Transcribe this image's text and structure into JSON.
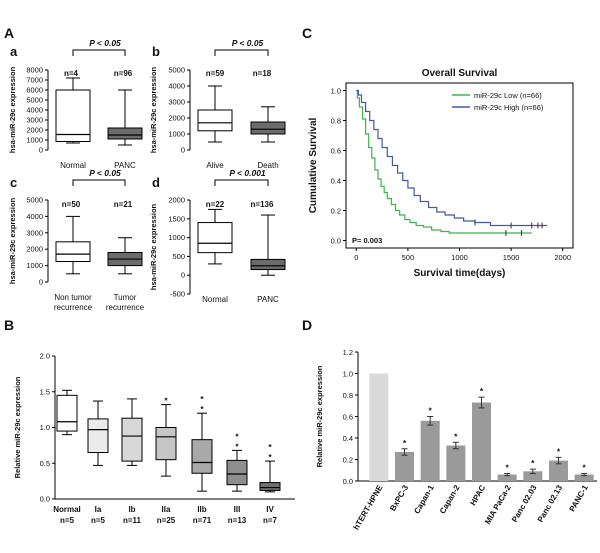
{
  "panel_labels": {
    "A": "A",
    "B": "B",
    "C": "C",
    "D": "D"
  },
  "chart_data": [
    {
      "id": "Aa",
      "label": "a",
      "type": "box",
      "ylabel": "hsa-miR-29c expression",
      "ylim": [
        0,
        8000
      ],
      "yticks": [
        0,
        1000,
        2000,
        3000,
        4000,
        5000,
        6000,
        7000,
        8000
      ],
      "significance": "P < 0.05",
      "groups": [
        {
          "name": "Normal",
          "n_label": "n=4",
          "fill": "#ffffff",
          "whisker_low": 700,
          "q1": 850,
          "median": 1550,
          "q3": 6000,
          "whisker_high": 7200
        },
        {
          "name": "PANC",
          "n_label": "n=96",
          "fill": "#6b6b6b",
          "whisker_low": 500,
          "q1": 1100,
          "median": 1500,
          "q3": 2200,
          "whisker_high": 6000
        }
      ]
    },
    {
      "id": "Ab",
      "label": "b",
      "type": "box",
      "ylabel": "hsa-miR-29c expression",
      "ylim": [
        0,
        5000
      ],
      "yticks": [
        0,
        1000,
        2000,
        3000,
        4000,
        5000
      ],
      "significance": "P < 0.05",
      "groups": [
        {
          "name": "Alive",
          "n_label": "n=59",
          "fill": "#ffffff",
          "whisker_low": 500,
          "q1": 1200,
          "median": 1700,
          "q3": 2500,
          "whisker_high": 4000
        },
        {
          "name": "Death",
          "n_label": "n=18",
          "fill": "#6b6b6b",
          "whisker_low": 500,
          "q1": 1000,
          "median": 1300,
          "q3": 1750,
          "whisker_high": 2700
        }
      ]
    },
    {
      "id": "Ac",
      "label": "c",
      "type": "box",
      "ylabel": "hsa-miR-29c expression",
      "ylim": [
        0,
        5000
      ],
      "yticks": [
        0,
        1000,
        2000,
        3000,
        4000,
        5000
      ],
      "significance": "P < 0.05",
      "groups": [
        {
          "name": "Non tumor recurrence",
          "lines": [
            "Non tumor",
            "recurrence"
          ],
          "n_label": "n=50",
          "fill": "#ffffff",
          "whisker_low": 500,
          "q1": 1250,
          "median": 1700,
          "q3": 2450,
          "whisker_high": 4000
        },
        {
          "name": "Tumor recurrence",
          "lines": [
            "Tumor",
            "recurrence"
          ],
          "n_label": "n=21",
          "fill": "#6b6b6b",
          "whisker_low": 500,
          "q1": 1000,
          "median": 1400,
          "q3": 1800,
          "whisker_high": 2700
        }
      ]
    },
    {
      "id": "Ad",
      "label": "d",
      "type": "box",
      "ylabel": "hsa-miR-29c expression",
      "ylim": [
        -500,
        2000
      ],
      "yticks": [
        -500,
        0,
        500,
        1000,
        1500,
        2000
      ],
      "significance": "P < 0.001",
      "groups": [
        {
          "name": "Normal",
          "n_label": "n=22",
          "fill": "#ffffff",
          "whisker_low": 300,
          "q1": 600,
          "median": 850,
          "q3": 1400,
          "whisker_high": 1750
        },
        {
          "name": "PANC",
          "n_label": "n=136",
          "fill": "#6b6b6b",
          "whisker_low": 0,
          "q1": 150,
          "median": 250,
          "q3": 420,
          "whisker_high": 1600
        }
      ]
    },
    {
      "id": "B",
      "type": "box",
      "ylabel": "Relative miR-29c expression",
      "ylim": [
        0.0,
        2.0
      ],
      "yticks": [
        0.0,
        0.5,
        1.0,
        1.5,
        2.0
      ],
      "groups": [
        {
          "name": "Normal",
          "n_label": "n=5",
          "fill": "#ffffff",
          "whisker_low": 0.9,
          "q1": 0.95,
          "median": 1.08,
          "q3": 1.45,
          "whisker_high": 1.52,
          "stars": ""
        },
        {
          "name": "Ia",
          "n_label": "n=5",
          "fill": "#ebebeb",
          "whisker_low": 0.47,
          "q1": 0.65,
          "median": 0.97,
          "q3": 1.12,
          "whisker_high": 1.37,
          "stars": ""
        },
        {
          "name": "Ib",
          "n_label": "n=11",
          "fill": "#d8d8d8",
          "whisker_low": 0.47,
          "q1": 0.53,
          "median": 0.88,
          "q3": 1.13,
          "whisker_high": 1.4,
          "stars": ""
        },
        {
          "name": "IIa",
          "n_label": "n=25",
          "fill": "#c6c6c6",
          "whisker_low": 0.32,
          "q1": 0.55,
          "median": 0.87,
          "q3": 1.0,
          "whisker_high": 1.32,
          "stars": "*"
        },
        {
          "name": "IIb",
          "n_label": "n=71",
          "fill": "#a9a9a9",
          "whisker_low": 0.11,
          "q1": 0.36,
          "median": 0.51,
          "q3": 0.83,
          "whisker_high": 1.2,
          "stars": "**"
        },
        {
          "name": "III",
          "n_label": "n=13",
          "fill": "#8e8e8e",
          "whisker_low": 0.11,
          "q1": 0.2,
          "median": 0.35,
          "q3": 0.54,
          "whisker_high": 0.68,
          "stars": "**"
        },
        {
          "name": "IV",
          "n_label": "n=7",
          "fill": "#6f6f6f",
          "whisker_low": 0.1,
          "q1": 0.12,
          "median": 0.16,
          "q3": 0.23,
          "whisker_high": 0.53,
          "stars": "**"
        }
      ]
    },
    {
      "id": "C",
      "type": "line",
      "title": "Overall Survival",
      "xlabel": "Survival time(days)",
      "ylabel": "Cumulative Survival",
      "xlim": [
        -100,
        2100
      ],
      "xticks": [
        0,
        500,
        1000,
        1500,
        2000
      ],
      "ylim": [
        -0.05,
        1.05
      ],
      "yticks": [
        0.0,
        0.2,
        0.4,
        0.6,
        0.8,
        1.0
      ],
      "pvalue_label": "P= 0.003",
      "series": [
        {
          "name": "miR-29c Low (n=66)",
          "color": "#3cb54a",
          "x": [
            0,
            10,
            30,
            60,
            90,
            120,
            150,
            180,
            210,
            240,
            270,
            300,
            340,
            380,
            420,
            470,
            520,
            580,
            650,
            730,
            820,
            900,
            1000,
            1700
          ],
          "y": [
            1.0,
            0.95,
            0.89,
            0.81,
            0.71,
            0.62,
            0.55,
            0.47,
            0.41,
            0.36,
            0.32,
            0.28,
            0.24,
            0.2,
            0.17,
            0.14,
            0.12,
            0.1,
            0.09,
            0.07,
            0.06,
            0.05,
            0.05,
            0.05
          ],
          "censor_x": [
            1450,
            1600
          ]
        },
        {
          "name": "miR-29c High (n=66)",
          "color": "#4458a8",
          "x": [
            0,
            20,
            50,
            90,
            130,
            170,
            210,
            250,
            300,
            350,
            400,
            450,
            500,
            560,
            620,
            700,
            780,
            860,
            950,
            1040,
            1150,
            1300,
            1850
          ],
          "y": [
            1.0,
            0.97,
            0.92,
            0.86,
            0.8,
            0.74,
            0.68,
            0.62,
            0.56,
            0.5,
            0.45,
            0.4,
            0.35,
            0.3,
            0.26,
            0.22,
            0.19,
            0.17,
            0.15,
            0.13,
            0.12,
            0.1,
            0.1
          ],
          "censor_x": [
            1150,
            1500,
            1700,
            1760,
            1800
          ]
        }
      ]
    },
    {
      "id": "D",
      "type": "bar",
      "ylabel": "Relative miR-29c expression",
      "ylim": [
        0.0,
        1.2
      ],
      "yticks": [
        0.0,
        0.2,
        0.4,
        0.6,
        0.8,
        1.0,
        1.2
      ],
      "categories": [
        "hTERT-HPNE",
        "BxPC-3",
        "Capan-1",
        "Capan-2",
        "HPAC",
        "MIA PaCa-2",
        "Panc 02.03",
        "Panc 02.13",
        "PANC-1"
      ],
      "values": [
        1.0,
        0.27,
        0.56,
        0.33,
        0.73,
        0.06,
        0.09,
        0.19,
        0.06
      ],
      "errors": [
        0.0,
        0.03,
        0.04,
        0.03,
        0.05,
        0.01,
        0.02,
        0.03,
        0.01
      ],
      "stars": [
        "",
        "*",
        "*",
        "*",
        "*",
        "*",
        "*",
        "*",
        "*"
      ],
      "colors": [
        "#d9d9d9",
        "#9a9a9a",
        "#9a9a9a",
        "#9a9a9a",
        "#9a9a9a",
        "#9a9a9a",
        "#9a9a9a",
        "#9a9a9a",
        "#9a9a9a"
      ]
    }
  ]
}
